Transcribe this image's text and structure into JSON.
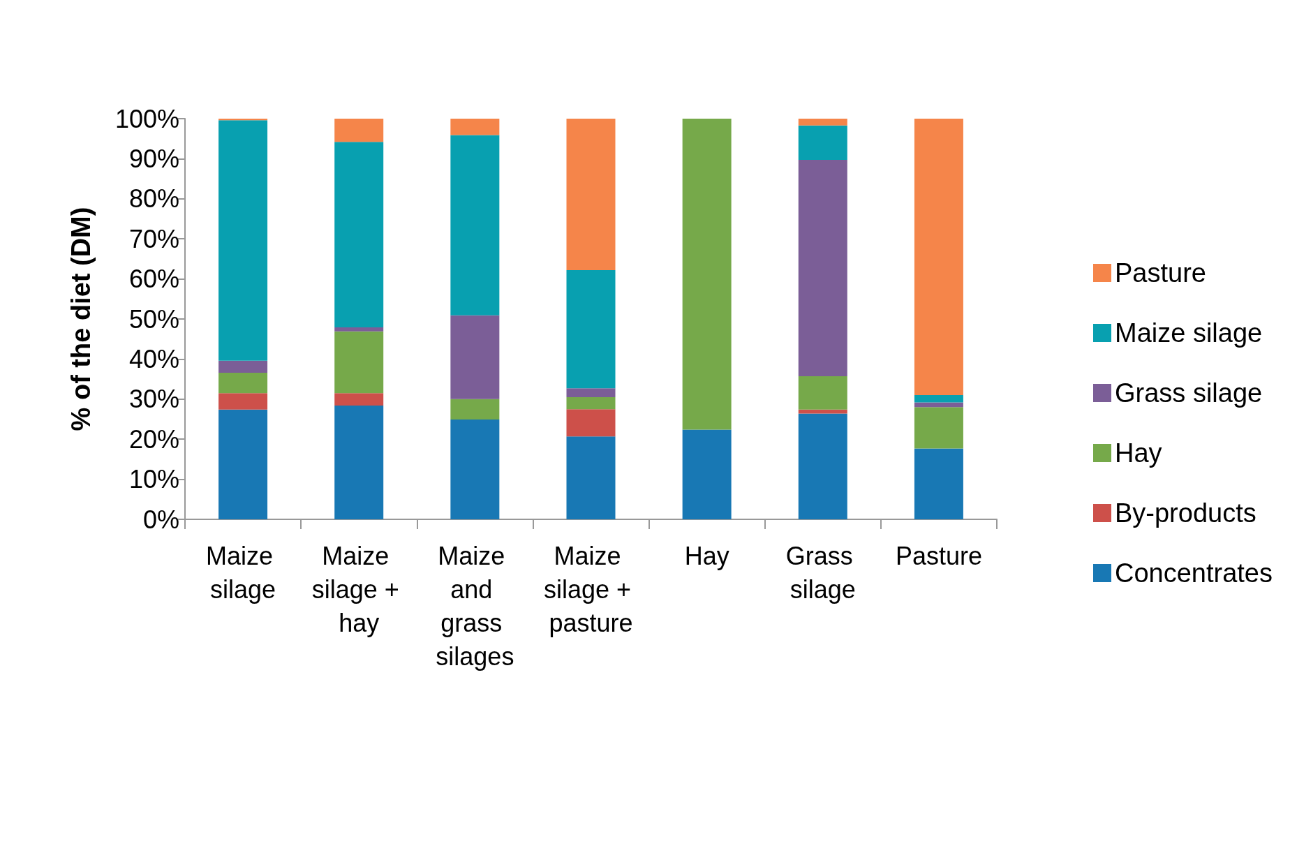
{
  "chart_data": {
    "type": "bar",
    "stacked": true,
    "ylabel": "% of the diet (DM)",
    "categories": [
      "Maize silage",
      "Maize silage + hay",
      "Maize and grass silages",
      "Maize silage + pasture",
      "Hay",
      "Grass silage",
      "Pasture"
    ],
    "series": [
      {
        "name": "Concentrates",
        "color": "#1878b4",
        "values": [
          27.4,
          28.4,
          24.9,
          20.7,
          22.4,
          26.4,
          17.7
        ]
      },
      {
        "name": "By-products",
        "color": "#cd504a",
        "values": [
          4.1,
          3.1,
          0,
          6.8,
          0,
          1.0,
          0
        ]
      },
      {
        "name": "Hay",
        "color": "#76a94a",
        "values": [
          5.1,
          15.4,
          5.1,
          3.0,
          77.6,
          8.3,
          10.3
        ]
      },
      {
        "name": "Grass silage",
        "color": "#7b5e97",
        "values": [
          3.0,
          1.0,
          20.9,
          2.2,
          0,
          54.0,
          1.2
        ]
      },
      {
        "name": "Maize silage",
        "color": "#08a0b0",
        "values": [
          60.0,
          46.3,
          45.0,
          29.5,
          0,
          8.6,
          1.8
        ]
      },
      {
        "name": "Pasture",
        "color": "#f5854a",
        "values": [
          0.4,
          5.8,
          4.1,
          37.8,
          0,
          1.7,
          69.0
        ]
      }
    ],
    "ylim": [
      0,
      100
    ],
    "yticks": [
      {
        "value": 0,
        "label": "0%"
      },
      {
        "value": 10,
        "label": "10%"
      },
      {
        "value": 20,
        "label": "20%"
      },
      {
        "value": 30,
        "label": "30%"
      },
      {
        "value": 40,
        "label": "40%"
      },
      {
        "value": 50,
        "label": "50%"
      },
      {
        "value": 60,
        "label": "60%"
      },
      {
        "value": 70,
        "label": "70%"
      },
      {
        "value": 80,
        "label": "80%"
      },
      {
        "value": 90,
        "label": "90%"
      },
      {
        "value": 100,
        "label": "100%"
      }
    ],
    "grid": false,
    "legend": "right"
  }
}
